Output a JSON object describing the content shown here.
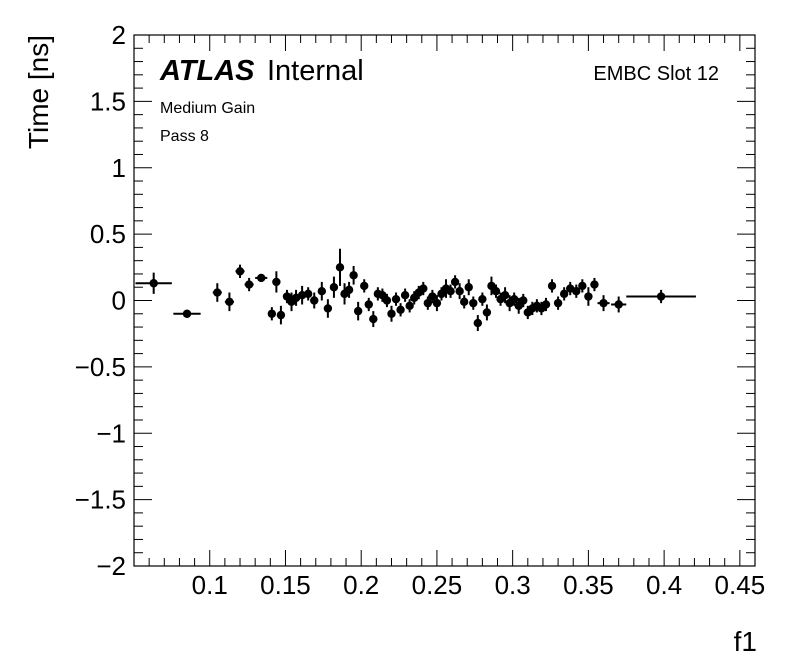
{
  "chart_data": {
    "type": "scatter",
    "title": "",
    "xlabel": "f1",
    "ylabel": "Time [ns]",
    "xlim": [
      0.05,
      0.46
    ],
    "ylim": [
      -2,
      2
    ],
    "x_ticks": [
      0.1,
      0.15,
      0.2,
      0.25,
      0.3,
      0.35,
      0.4,
      0.45
    ],
    "x_tick_labels": [
      "0.1",
      "0.15",
      "0.2",
      "0.25",
      "0.3",
      "0.35",
      "0.4",
      "0.45"
    ],
    "y_ticks": [
      -2,
      -1.5,
      -1,
      -0.5,
      0,
      0.5,
      1,
      1.5,
      2
    ],
    "y_tick_labels": [
      "−2",
      "−1.5",
      "−1",
      "−0.5",
      "0",
      "0.5",
      "1",
      "1.5",
      "2"
    ],
    "grid": false,
    "legend": "none",
    "annotations": {
      "experiment_bold": "ATLAS",
      "experiment_rest": "Internal",
      "line1": "Medium Gain",
      "line2": "Pass 8",
      "corner": "EMBC Slot 12"
    },
    "marker_color": "#000000",
    "points": [
      {
        "x": 0.063,
        "y": 0.13,
        "xerr": 0.012,
        "yerr": 0.08
      },
      {
        "x": 0.085,
        "y": -0.1,
        "xerr": 0.009,
        "yerr": 0.03
      },
      {
        "x": 0.105,
        "y": 0.06,
        "xerr": 0.003,
        "yerr": 0.07
      },
      {
        "x": 0.113,
        "y": -0.01,
        "xerr": 0.003,
        "yerr": 0.07
      },
      {
        "x": 0.12,
        "y": 0.22,
        "xerr": 0.003,
        "yerr": 0.05
      },
      {
        "x": 0.126,
        "y": 0.12,
        "xerr": 0.003,
        "yerr": 0.05
      },
      {
        "x": 0.134,
        "y": 0.17,
        "xerr": 0.004,
        "yerr": 0.03
      },
      {
        "x": 0.141,
        "y": -0.1,
        "xerr": 0.002,
        "yerr": 0.05
      },
      {
        "x": 0.144,
        "y": 0.14,
        "xerr": 0.002,
        "yerr": 0.08
      },
      {
        "x": 0.147,
        "y": -0.11,
        "xerr": 0.002,
        "yerr": 0.07
      },
      {
        "x": 0.151,
        "y": 0.03,
        "xerr": 0.002,
        "yerr": 0.05
      },
      {
        "x": 0.154,
        "y": -0.01,
        "xerr": 0.002,
        "yerr": 0.07
      },
      {
        "x": 0.157,
        "y": 0.02,
        "xerr": 0.002,
        "yerr": 0.06
      },
      {
        "x": 0.161,
        "y": 0.04,
        "xerr": 0.002,
        "yerr": 0.07
      },
      {
        "x": 0.165,
        "y": 0.05,
        "xerr": 0.002,
        "yerr": 0.05
      },
      {
        "x": 0.169,
        "y": 0.0,
        "xerr": 0.002,
        "yerr": 0.06
      },
      {
        "x": 0.174,
        "y": 0.07,
        "xerr": 0.002,
        "yerr": 0.07
      },
      {
        "x": 0.178,
        "y": -0.06,
        "xerr": 0.002,
        "yerr": 0.07
      },
      {
        "x": 0.182,
        "y": 0.1,
        "xerr": 0.002,
        "yerr": 0.08
      },
      {
        "x": 0.186,
        "y": 0.25,
        "xerr": 0.002,
        "yerr": 0.14
      },
      {
        "x": 0.189,
        "y": 0.05,
        "xerr": 0.002,
        "yerr": 0.08
      },
      {
        "x": 0.192,
        "y": 0.08,
        "xerr": 0.002,
        "yerr": 0.06
      },
      {
        "x": 0.195,
        "y": 0.19,
        "xerr": 0.002,
        "yerr": 0.07
      },
      {
        "x": 0.198,
        "y": -0.08,
        "xerr": 0.002,
        "yerr": 0.07
      },
      {
        "x": 0.202,
        "y": 0.11,
        "xerr": 0.002,
        "yerr": 0.05
      },
      {
        "x": 0.205,
        "y": -0.03,
        "xerr": 0.002,
        "yerr": 0.05
      },
      {
        "x": 0.208,
        "y": -0.14,
        "xerr": 0.002,
        "yerr": 0.06
      },
      {
        "x": 0.211,
        "y": 0.05,
        "xerr": 0.002,
        "yerr": 0.05
      },
      {
        "x": 0.214,
        "y": 0.04,
        "xerr": 0.002,
        "yerr": 0.05
      },
      {
        "x": 0.217,
        "y": 0.0,
        "xerr": 0.002,
        "yerr": 0.05
      },
      {
        "x": 0.22,
        "y": -0.1,
        "xerr": 0.002,
        "yerr": 0.06
      },
      {
        "x": 0.223,
        "y": 0.01,
        "xerr": 0.002,
        "yerr": 0.05
      },
      {
        "x": 0.226,
        "y": -0.07,
        "xerr": 0.002,
        "yerr": 0.05
      },
      {
        "x": 0.229,
        "y": 0.04,
        "xerr": 0.002,
        "yerr": 0.05
      },
      {
        "x": 0.232,
        "y": -0.04,
        "xerr": 0.002,
        "yerr": 0.05
      },
      {
        "x": 0.235,
        "y": 0.02,
        "xerr": 0.002,
        "yerr": 0.05
      },
      {
        "x": 0.238,
        "y": 0.06,
        "xerr": 0.002,
        "yerr": 0.05
      },
      {
        "x": 0.241,
        "y": 0.09,
        "xerr": 0.002,
        "yerr": 0.05
      },
      {
        "x": 0.244,
        "y": -0.02,
        "xerr": 0.002,
        "yerr": 0.05
      },
      {
        "x": 0.247,
        "y": 0.03,
        "xerr": 0.002,
        "yerr": 0.05
      },
      {
        "x": 0.25,
        "y": -0.02,
        "xerr": 0.002,
        "yerr": 0.06
      },
      {
        "x": 0.253,
        "y": 0.05,
        "xerr": 0.002,
        "yerr": 0.05
      },
      {
        "x": 0.256,
        "y": 0.09,
        "xerr": 0.002,
        "yerr": 0.07
      },
      {
        "x": 0.259,
        "y": 0.07,
        "xerr": 0.002,
        "yerr": 0.05
      },
      {
        "x": 0.262,
        "y": 0.14,
        "xerr": 0.002,
        "yerr": 0.05
      },
      {
        "x": 0.265,
        "y": 0.07,
        "xerr": 0.002,
        "yerr": 0.06
      },
      {
        "x": 0.268,
        "y": -0.01,
        "xerr": 0.002,
        "yerr": 0.05
      },
      {
        "x": 0.271,
        "y": 0.1,
        "xerr": 0.002,
        "yerr": 0.06
      },
      {
        "x": 0.274,
        "y": -0.02,
        "xerr": 0.002,
        "yerr": 0.05
      },
      {
        "x": 0.277,
        "y": -0.17,
        "xerr": 0.002,
        "yerr": 0.06
      },
      {
        "x": 0.28,
        "y": 0.01,
        "xerr": 0.002,
        "yerr": 0.05
      },
      {
        "x": 0.283,
        "y": -0.09,
        "xerr": 0.002,
        "yerr": 0.06
      },
      {
        "x": 0.286,
        "y": 0.11,
        "xerr": 0.002,
        "yerr": 0.07
      },
      {
        "x": 0.289,
        "y": 0.07,
        "xerr": 0.002,
        "yerr": 0.05
      },
      {
        "x": 0.292,
        "y": 0.01,
        "xerr": 0.002,
        "yerr": 0.05
      },
      {
        "x": 0.295,
        "y": 0.04,
        "xerr": 0.002,
        "yerr": 0.06
      },
      {
        "x": 0.298,
        "y": -0.02,
        "xerr": 0.002,
        "yerr": 0.06
      },
      {
        "x": 0.301,
        "y": 0.01,
        "xerr": 0.002,
        "yerr": 0.05
      },
      {
        "x": 0.304,
        "y": -0.04,
        "xerr": 0.002,
        "yerr": 0.06
      },
      {
        "x": 0.307,
        "y": 0.0,
        "xerr": 0.002,
        "yerr": 0.05
      },
      {
        "x": 0.31,
        "y": -0.09,
        "xerr": 0.002,
        "yerr": 0.05
      },
      {
        "x": 0.313,
        "y": -0.06,
        "xerr": 0.002,
        "yerr": 0.05
      },
      {
        "x": 0.316,
        "y": -0.04,
        "xerr": 0.002,
        "yerr": 0.05
      },
      {
        "x": 0.319,
        "y": -0.06,
        "xerr": 0.002,
        "yerr": 0.05
      },
      {
        "x": 0.322,
        "y": -0.03,
        "xerr": 0.002,
        "yerr": 0.05
      },
      {
        "x": 0.326,
        "y": 0.11,
        "xerr": 0.002,
        "yerr": 0.05
      },
      {
        "x": 0.33,
        "y": -0.02,
        "xerr": 0.002,
        "yerr": 0.05
      },
      {
        "x": 0.334,
        "y": 0.05,
        "xerr": 0.002,
        "yerr": 0.05
      },
      {
        "x": 0.338,
        "y": 0.09,
        "xerr": 0.002,
        "yerr": 0.05
      },
      {
        "x": 0.342,
        "y": 0.07,
        "xerr": 0.002,
        "yerr": 0.05
      },
      {
        "x": 0.346,
        "y": 0.11,
        "xerr": 0.002,
        "yerr": 0.05
      },
      {
        "x": 0.35,
        "y": 0.03,
        "xerr": 0.002,
        "yerr": 0.07
      },
      {
        "x": 0.354,
        "y": 0.12,
        "xerr": 0.002,
        "yerr": 0.05
      },
      {
        "x": 0.36,
        "y": -0.02,
        "xerr": 0.004,
        "yerr": 0.06
      },
      {
        "x": 0.37,
        "y": -0.03,
        "xerr": 0.005,
        "yerr": 0.06
      },
      {
        "x": 0.398,
        "y": 0.03,
        "xerr": 0.023,
        "yerr": 0.05
      }
    ]
  }
}
